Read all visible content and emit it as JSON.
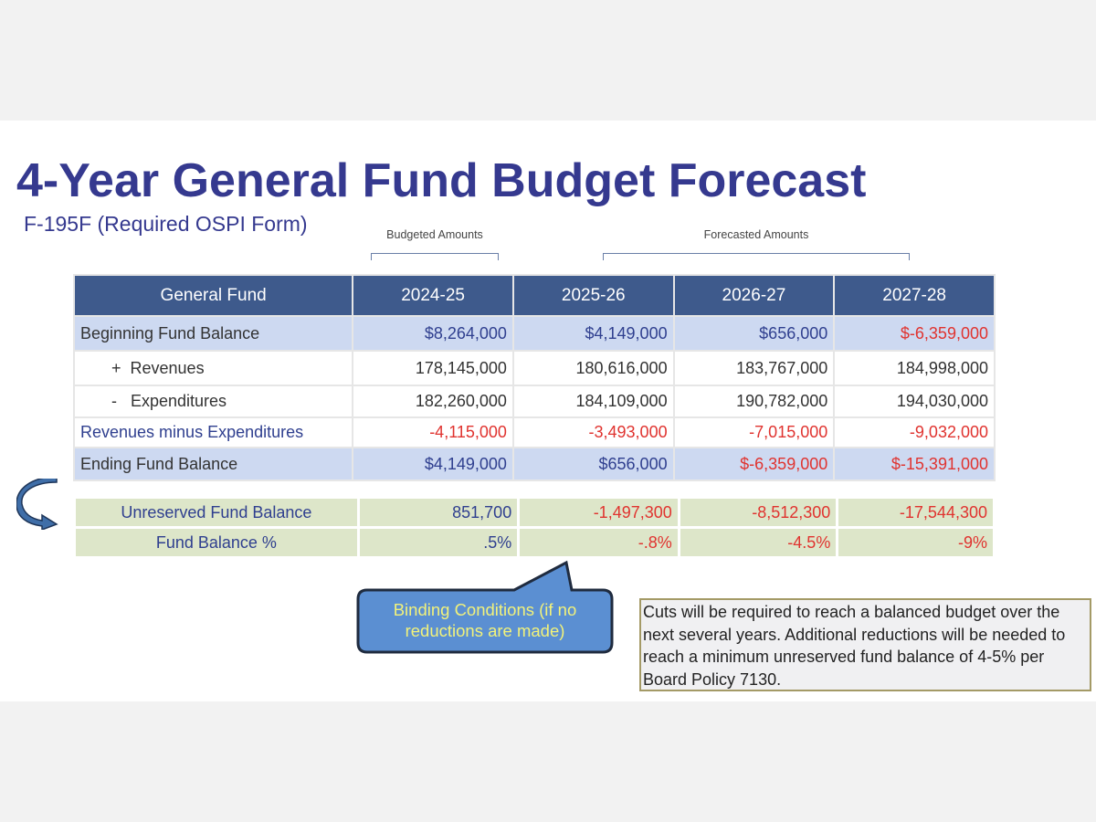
{
  "title": "4-Year General Fund Budget Forecast",
  "subtitle": "F-195F (Required OSPI Form)",
  "groups": {
    "budgeted": "Budgeted Amounts",
    "forecasted": "Forecasted Amounts"
  },
  "table": {
    "headers": [
      "General Fund",
      "2024-25",
      "2025-26",
      "2026-27",
      "2027-28"
    ],
    "rows": [
      {
        "label": "Beginning Fund Balance",
        "values": [
          "$8,264,000",
          "$4,149,000",
          "$656,000",
          "$-6,359,000"
        ]
      },
      {
        "label": "+  Revenues",
        "values": [
          "178,145,000",
          "180,616,000",
          "183,767,000",
          "184,998,000"
        ]
      },
      {
        "label": "-   Expenditures",
        "values": [
          "182,260,000",
          "184,109,000",
          "190,782,000",
          "194,030,000"
        ]
      },
      {
        "label": "Revenues minus Expenditures",
        "values": [
          "-4,115,000",
          "-3,493,000",
          "-7,015,000",
          "-9,032,000"
        ]
      },
      {
        "label": "Ending Fund Balance",
        "values": [
          "$4,149,000",
          "$656,000",
          "$-6,359,000",
          "$-15,391,000"
        ]
      }
    ]
  },
  "reserve": {
    "rows": [
      {
        "label": "Unreserved Fund Balance",
        "values": [
          "851,700",
          "-1,497,300",
          "-8,512,300",
          "-17,544,300"
        ]
      },
      {
        "label": "Fund Balance %",
        "values": [
          ".5%",
          "-.8%",
          "-4.5%",
          "-9%"
        ]
      }
    ]
  },
  "callout": "Binding Conditions (if no reductions are made)",
  "note": "Cuts will be required to reach a balanced budget over the next several years.  Additional reductions will be needed to reach a minimum unreserved fund balance of 4-5% per Board Policy 7130.",
  "colors": {
    "title": "#35398f",
    "header": "#3e5a8c",
    "negative": "#e0332f",
    "positive": "#2f3f8f"
  }
}
